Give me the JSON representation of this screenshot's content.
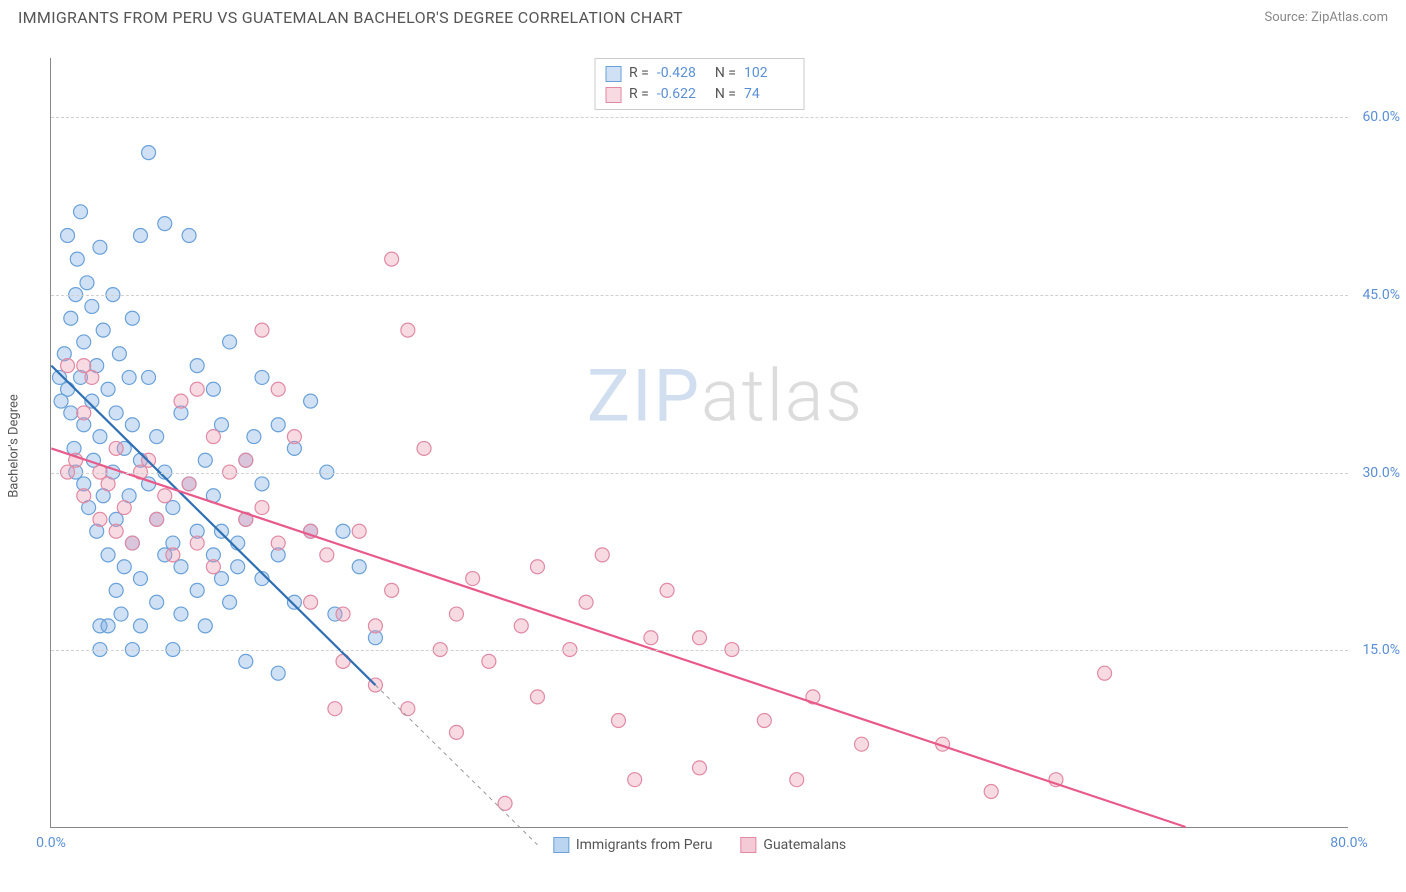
{
  "title": "IMMIGRANTS FROM PERU VS GUATEMALAN BACHELOR'S DEGREE CORRELATION CHART",
  "source": "Source: ZipAtlas.com",
  "ylabel": "Bachelor's Degree",
  "watermark": {
    "part1": "ZIP",
    "part2": "atlas"
  },
  "chart": {
    "type": "scatter",
    "xlim": [
      0,
      80
    ],
    "ylim": [
      0,
      65
    ],
    "x_ticks": [
      {
        "v": 0,
        "l": "0.0%"
      },
      {
        "v": 80,
        "l": "80.0%"
      }
    ],
    "y_ticks": [
      {
        "v": 15,
        "l": "15.0%"
      },
      {
        "v": 30,
        "l": "30.0%"
      },
      {
        "v": 45,
        "l": "45.0%"
      },
      {
        "v": 60,
        "l": "60.0%"
      }
    ],
    "background_color": "#ffffff",
    "grid_color": "#d0d0d0",
    "marker_radius": 7,
    "marker_stroke_width": 1.2,
    "series": [
      {
        "name": "Immigrants from Peru",
        "fill": "rgba(120,170,225,0.35)",
        "stroke": "#6aa1d8",
        "line_color": "#2f6fb3",
        "line_width": 2.2,
        "r_value": "-0.428",
        "n_value": "102",
        "trend": {
          "x1": 0,
          "y1": 39,
          "x2": 20,
          "y2": 12,
          "extend_dash_to_x": 30
        },
        "points": [
          [
            0.5,
            38
          ],
          [
            0.6,
            36
          ],
          [
            0.8,
            40
          ],
          [
            1.0,
            37
          ],
          [
            1.0,
            50
          ],
          [
            1.2,
            43
          ],
          [
            1.2,
            35
          ],
          [
            1.4,
            32
          ],
          [
            1.5,
            45
          ],
          [
            1.5,
            30
          ],
          [
            1.6,
            48
          ],
          [
            1.8,
            52
          ],
          [
            1.8,
            38
          ],
          [
            2.0,
            34
          ],
          [
            2.0,
            41
          ],
          [
            2.0,
            29
          ],
          [
            2.2,
            46
          ],
          [
            2.3,
            27
          ],
          [
            2.5,
            44
          ],
          [
            2.5,
            36
          ],
          [
            2.6,
            31
          ],
          [
            2.8,
            39
          ],
          [
            2.8,
            25
          ],
          [
            3.0,
            49
          ],
          [
            3.0,
            33
          ],
          [
            3.0,
            17
          ],
          [
            3.0,
            15
          ],
          [
            3.2,
            42
          ],
          [
            3.2,
            28
          ],
          [
            3.5,
            37
          ],
          [
            3.5,
            23
          ],
          [
            3.5,
            17
          ],
          [
            3.8,
            30
          ],
          [
            3.8,
            45
          ],
          [
            4.0,
            35
          ],
          [
            4.0,
            26
          ],
          [
            4.0,
            20
          ],
          [
            4.2,
            40
          ],
          [
            4.3,
            18
          ],
          [
            4.5,
            32
          ],
          [
            4.5,
            22
          ],
          [
            4.8,
            28
          ],
          [
            4.8,
            38
          ],
          [
            5.0,
            24
          ],
          [
            5.0,
            34
          ],
          [
            5.0,
            43
          ],
          [
            5.0,
            15
          ],
          [
            5.5,
            31
          ],
          [
            5.5,
            21
          ],
          [
            5.5,
            17
          ],
          [
            5.5,
            50
          ],
          [
            6.0,
            29
          ],
          [
            6.0,
            38
          ],
          [
            6.0,
            57
          ],
          [
            6.5,
            26
          ],
          [
            6.5,
            33
          ],
          [
            6.5,
            19
          ],
          [
            7.0,
            23
          ],
          [
            7.0,
            30
          ],
          [
            7.0,
            51
          ],
          [
            7.5,
            27
          ],
          [
            7.5,
            15
          ],
          [
            7.5,
            24
          ],
          [
            8.0,
            22
          ],
          [
            8.0,
            35
          ],
          [
            8.0,
            18
          ],
          [
            8.5,
            29
          ],
          [
            8.5,
            50
          ],
          [
            9.0,
            25
          ],
          [
            9.0,
            20
          ],
          [
            9.0,
            39
          ],
          [
            9.5,
            17
          ],
          [
            9.5,
            31
          ],
          [
            10.0,
            23
          ],
          [
            10.0,
            28
          ],
          [
            10.0,
            37
          ],
          [
            10.5,
            21
          ],
          [
            10.5,
            34
          ],
          [
            10.5,
            25
          ],
          [
            11.0,
            19
          ],
          [
            11.0,
            41
          ],
          [
            11.5,
            22
          ],
          [
            11.5,
            24
          ],
          [
            12.0,
            31
          ],
          [
            12.0,
            26
          ],
          [
            12.0,
            14
          ],
          [
            12.5,
            33
          ],
          [
            13.0,
            29
          ],
          [
            13.0,
            21
          ],
          [
            13.0,
            38
          ],
          [
            14.0,
            34
          ],
          [
            14.0,
            23
          ],
          [
            14.0,
            13
          ],
          [
            15.0,
            32
          ],
          [
            15.0,
            19
          ],
          [
            16.0,
            25
          ],
          [
            16.0,
            36
          ],
          [
            17.0,
            30
          ],
          [
            17.5,
            18
          ],
          [
            18.0,
            25
          ],
          [
            19.0,
            22
          ],
          [
            20.0,
            16
          ]
        ]
      },
      {
        "name": "Guatemalans",
        "fill": "rgba(235,150,175,0.35)",
        "stroke": "#e08aa4",
        "line_color": "#e75a8a",
        "line_width": 2.2,
        "r_value": "-0.622",
        "n_value": "74",
        "trend": {
          "x1": 0,
          "y1": 32,
          "x2": 70,
          "y2": 0
        },
        "points": [
          [
            1.0,
            39
          ],
          [
            1.0,
            30
          ],
          [
            1.5,
            31
          ],
          [
            2.0,
            28
          ],
          [
            2.0,
            35
          ],
          [
            2.5,
            38
          ],
          [
            3.0,
            26
          ],
          [
            3.0,
            30
          ],
          [
            3.5,
            29
          ],
          [
            4.0,
            32
          ],
          [
            4.0,
            25
          ],
          [
            4.5,
            27
          ],
          [
            5.0,
            24
          ],
          [
            5.5,
            30
          ],
          [
            6.0,
            31
          ],
          [
            6.5,
            26
          ],
          [
            7.0,
            28
          ],
          [
            7.5,
            23
          ],
          [
            8.0,
            36
          ],
          [
            8.5,
            29
          ],
          [
            9.0,
            24
          ],
          [
            9.0,
            37
          ],
          [
            10.0,
            33
          ],
          [
            10.0,
            22
          ],
          [
            11.0,
            30
          ],
          [
            12.0,
            26
          ],
          [
            12.0,
            31
          ],
          [
            13.0,
            27
          ],
          [
            13.0,
            42
          ],
          [
            14.0,
            37
          ],
          [
            14.0,
            24
          ],
          [
            15.0,
            33
          ],
          [
            16.0,
            25
          ],
          [
            16.0,
            19
          ],
          [
            17.0,
            23
          ],
          [
            17.5,
            10
          ],
          [
            18.0,
            14
          ],
          [
            18.0,
            18
          ],
          [
            19.0,
            25
          ],
          [
            20.0,
            17
          ],
          [
            20.0,
            12
          ],
          [
            21.0,
            48
          ],
          [
            21.0,
            20
          ],
          [
            22.0,
            10
          ],
          [
            22.0,
            42
          ],
          [
            23.0,
            32
          ],
          [
            24.0,
            15
          ],
          [
            25.0,
            18
          ],
          [
            25.0,
            8
          ],
          [
            26.0,
            21
          ],
          [
            27.0,
            14
          ],
          [
            28.0,
            2
          ],
          [
            29.0,
            17
          ],
          [
            30.0,
            11
          ],
          [
            30.0,
            22
          ],
          [
            32.0,
            15
          ],
          [
            33.0,
            19
          ],
          [
            34.0,
            23
          ],
          [
            35.0,
            9
          ],
          [
            36.0,
            4
          ],
          [
            37.0,
            16
          ],
          [
            38.0,
            20
          ],
          [
            40.0,
            5
          ],
          [
            40.0,
            16
          ],
          [
            42.0,
            15
          ],
          [
            44.0,
            9
          ],
          [
            46.0,
            4
          ],
          [
            47.0,
            11
          ],
          [
            50.0,
            7
          ],
          [
            55.0,
            7
          ],
          [
            58.0,
            3
          ],
          [
            62.0,
            4
          ],
          [
            65.0,
            13
          ],
          [
            2.0,
            39
          ]
        ]
      }
    ]
  },
  "legend_top": {
    "r_label": "R =",
    "n_label": "N ="
  },
  "legend_bottom": [
    {
      "label": "Immigrants from Peru",
      "fill": "rgba(120,170,225,0.5)",
      "stroke": "#6aa1d8"
    },
    {
      "label": "Guatemalans",
      "fill": "rgba(235,150,175,0.5)",
      "stroke": "#e08aa4"
    }
  ]
}
